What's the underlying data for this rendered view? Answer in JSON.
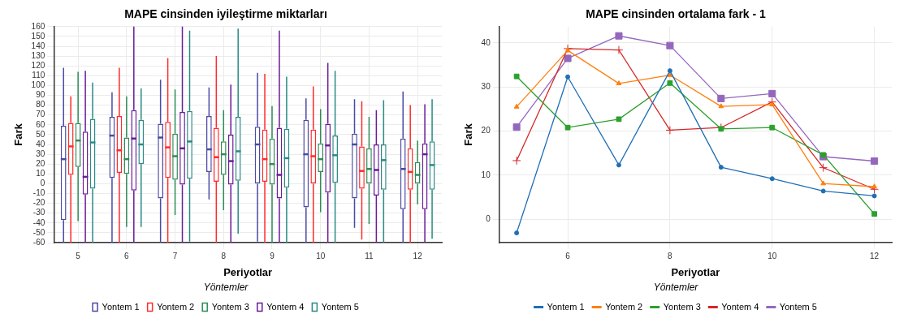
{
  "chart_data": [
    {
      "type": "box",
      "title": "MAPE cinsinden iyileştirme miktarları",
      "xlabel": "Periyotlar",
      "ylabel": "Fark",
      "legend_title": "Yöntemler",
      "legend": "bottom",
      "grid": true,
      "categories": [
        "5",
        "6",
        "7",
        "8",
        "9",
        "10",
        "11",
        "12"
      ],
      "ylim": [
        -60,
        160
      ],
      "yticks": [
        -60,
        -50,
        -40,
        -30,
        -20,
        -10,
        0,
        10,
        20,
        30,
        40,
        50,
        60,
        70,
        80,
        90,
        100,
        110,
        120,
        130,
        140,
        150,
        160
      ],
      "series": [
        {
          "name": "Yontem 1",
          "color": "#4a4aa5",
          "boxes": [
            {
              "low": -60,
              "q1": -37,
              "median": 25,
              "q3": 59,
              "high": 118
            },
            {
              "low": -60,
              "q1": 6,
              "median": 49,
              "q3": 68,
              "high": 93
            },
            {
              "low": -60,
              "q1": -15,
              "median": 47,
              "q3": 61,
              "high": 106
            },
            {
              "low": -16,
              "q1": 12,
              "median": 35,
              "q3": 69,
              "high": 98
            },
            {
              "low": -59,
              "q1": 0,
              "median": 40,
              "q3": 58,
              "high": 113
            },
            {
              "low": -60,
              "q1": -24,
              "median": 30,
              "q3": 65,
              "high": 87
            },
            {
              "low": -45,
              "q1": -15,
              "median": 40,
              "q3": 51,
              "high": 86
            },
            {
              "low": -60,
              "q1": -26,
              "median": 15,
              "q3": 46,
              "high": 94
            }
          ]
        },
        {
          "name": "Yontem 2",
          "color": "#ff2a2a",
          "boxes": [
            {
              "low": -60,
              "q1": 9,
              "median": 38,
              "q3": 62,
              "high": 89
            },
            {
              "low": -60,
              "q1": 11,
              "median": 34,
              "q3": 69,
              "high": 118
            },
            {
              "low": -60,
              "q1": 6,
              "median": 37,
              "q3": 63,
              "high": 128
            },
            {
              "low": -60,
              "q1": 2,
              "median": 27,
              "q3": 57,
              "high": 130
            },
            {
              "low": -60,
              "q1": 2,
              "median": 25,
              "q3": 55,
              "high": 112
            },
            {
              "low": -60,
              "q1": 0,
              "median": 28,
              "q3": 55,
              "high": 99
            },
            {
              "low": -57,
              "q1": -5,
              "median": 13,
              "q3": 38,
              "high": 84
            },
            {
              "low": -60,
              "q1": -6,
              "median": 12,
              "q3": 36,
              "high": 80
            }
          ]
        },
        {
          "name": "Yontem 3",
          "color": "#2e8b57",
          "boxes": [
            {
              "low": -38,
              "q1": 17,
              "median": 44,
              "q3": 62,
              "high": 114
            },
            {
              "low": -44,
              "q1": 10,
              "median": 25,
              "q3": 47,
              "high": 89
            },
            {
              "low": -32,
              "q1": 4,
              "median": 28,
              "q3": 51,
              "high": 96
            },
            {
              "low": -27,
              "q1": 9,
              "median": 30,
              "q3": 43,
              "high": 75
            },
            {
              "low": -60,
              "q1": -1,
              "median": 20,
              "q3": 46,
              "high": 79
            },
            {
              "low": -29,
              "q1": 12,
              "median": 25,
              "q3": 41,
              "high": 76
            },
            {
              "low": -41,
              "q1": 0,
              "median": 15,
              "q3": 36,
              "high": 68
            },
            {
              "low": -21,
              "q1": 0,
              "median": 9,
              "q3": 22,
              "high": 44
            }
          ]
        },
        {
          "name": "Yontem 4",
          "color": "#6a1b9a",
          "boxes": [
            {
              "low": -60,
              "q1": -11,
              "median": 7,
              "q3": 53,
              "high": 115
            },
            {
              "low": -60,
              "q1": -7,
              "median": 46,
              "q3": 75,
              "high": 160
            },
            {
              "low": -60,
              "q1": -1,
              "median": 36,
              "q3": 73,
              "high": 160
            },
            {
              "low": -60,
              "q1": -1,
              "median": 23,
              "q3": 50,
              "high": 101
            },
            {
              "low": -60,
              "q1": -15,
              "median": 9,
              "q3": 57,
              "high": 156
            },
            {
              "low": -60,
              "q1": -9,
              "median": 39,
              "q3": 61,
              "high": 123
            },
            {
              "low": -60,
              "q1": -12,
              "median": 14,
              "q3": 40,
              "high": 75
            },
            {
              "low": -60,
              "q1": -26,
              "median": 30,
              "q3": 41,
              "high": 81
            }
          ]
        },
        {
          "name": "Yontem 5",
          "color": "#2a8a85",
          "boxes": [
            {
              "low": -60,
              "q1": -5,
              "median": 42,
              "q3": 66,
              "high": 103
            },
            {
              "low": -44,
              "q1": 20,
              "median": 40,
              "q3": 65,
              "high": 97
            },
            {
              "low": -59,
              "q1": 5,
              "median": 43,
              "q3": 74,
              "high": 156
            },
            {
              "low": -51,
              "q1": 3,
              "median": 33,
              "q3": 68,
              "high": 158
            },
            {
              "low": -60,
              "q1": -4,
              "median": 26,
              "q3": 56,
              "high": 109
            },
            {
              "low": -60,
              "q1": 1,
              "median": 29,
              "q3": 49,
              "high": 115
            },
            {
              "low": -60,
              "q1": -6,
              "median": 24,
              "q3": 40,
              "high": 85
            },
            {
              "low": -56,
              "q1": -6,
              "median": 19,
              "q3": 43,
              "high": 86
            }
          ]
        }
      ]
    },
    {
      "type": "line",
      "title": "MAPE cinsinden ortalama fark - 1",
      "xlabel": "Periyotlar",
      "ylabel": "Fark",
      "legend_title": "Yöntemler",
      "legend": "bottom",
      "grid": true,
      "x": [
        5,
        6,
        7,
        8,
        9,
        10,
        11,
        12
      ],
      "xlim": [
        4.66,
        12.34
      ],
      "xticks": [
        6,
        8,
        10,
        12
      ],
      "ylim": [
        -5.3,
        43.7
      ],
      "yticks": [
        0,
        10,
        20,
        30,
        40
      ],
      "series": [
        {
          "name": "Yontem 1",
          "color": "#1f6fb5",
          "marker": "circle",
          "values": [
            -3.1,
            32.3,
            12.3,
            33.7,
            11.8,
            9.2,
            6.4,
            5.3
          ]
        },
        {
          "name": "Yontem 2",
          "color": "#ff7f0e",
          "marker": "triangle",
          "values": [
            25.5,
            38.3,
            30.8,
            32.7,
            25.6,
            26.0,
            8.1,
            7.4
          ]
        },
        {
          "name": "Yontem 3",
          "color": "#2ca02c",
          "marker": "square",
          "values": [
            32.4,
            20.8,
            22.7,
            30.9,
            20.5,
            20.8,
            14.6,
            1.2
          ]
        },
        {
          "name": "Yontem 4",
          "color": "#d62728",
          "marker": "cross",
          "values": [
            13.3,
            38.7,
            38.4,
            20.2,
            20.8,
            26.6,
            11.7,
            6.8
          ]
        },
        {
          "name": "Yontem 5",
          "color": "#9467bd",
          "marker": "square",
          "values": [
            20.9,
            36.5,
            41.6,
            39.4,
            27.4,
            28.5,
            14.2,
            13.2
          ]
        }
      ]
    }
  ]
}
